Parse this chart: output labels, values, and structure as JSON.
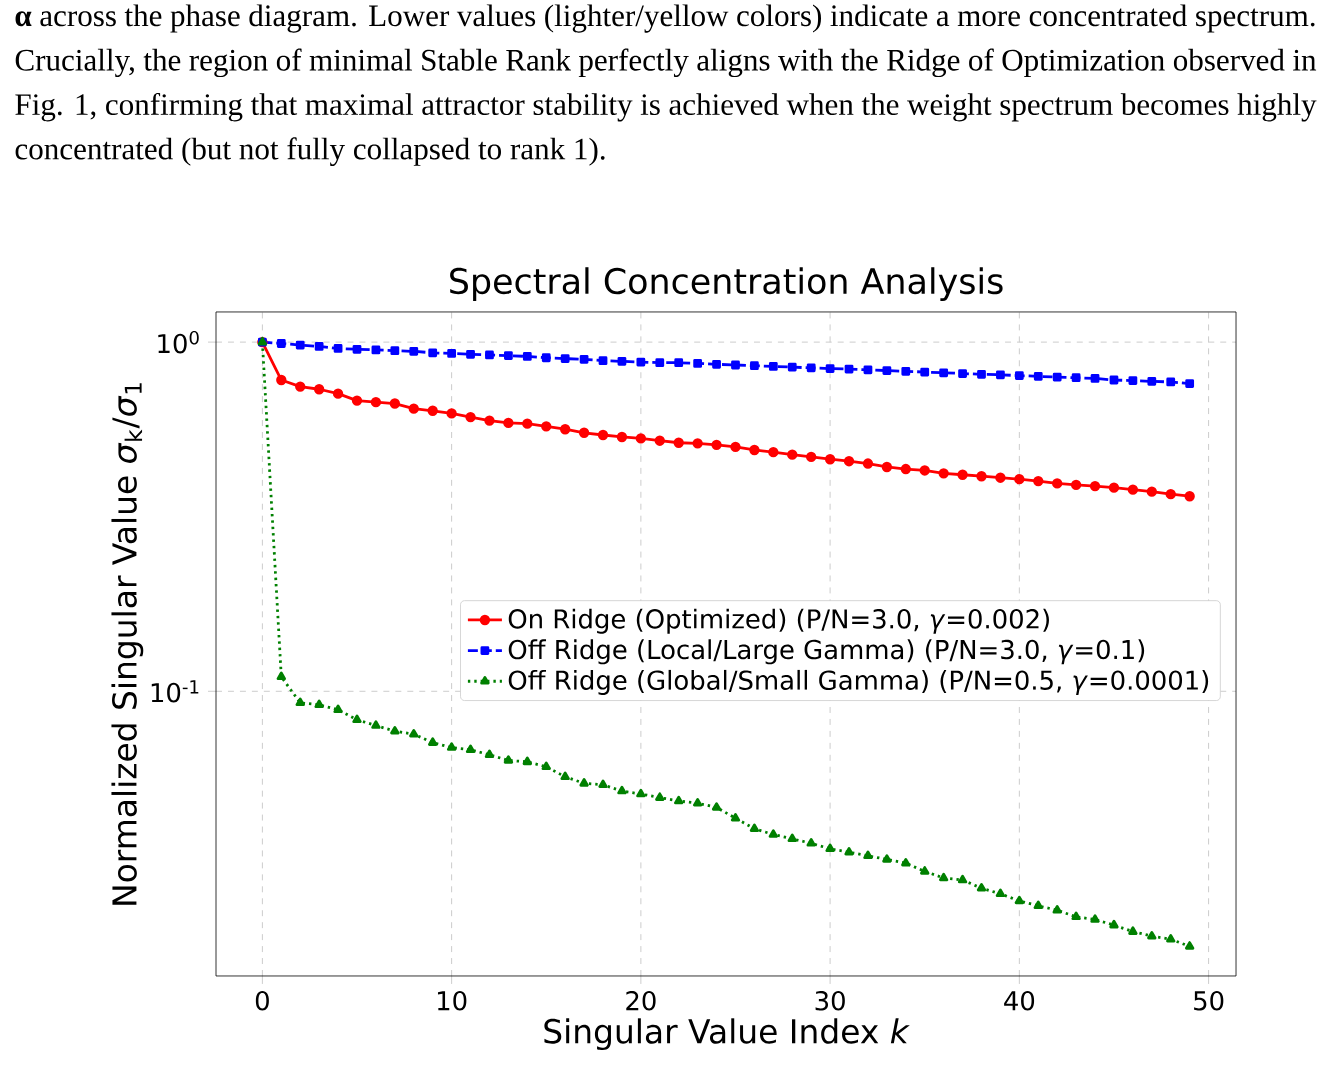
{
  "chart_data": {
    "type": "line",
    "annotations": [
      "**α** across the phase diagram.  Lower values (lighter/yellow colors) indicate a more concentrated spectrum. Crucially, the region of minimal Stable Rank perfectly aligns with the Ridge of Optimization observed in Fig. 1, confirming that maximal attractor stability is achieved when the weight spectrum becomes highly concentrated (but not fully collapsed to rank 1)."
    ],
    "title": "Spectral Concentration Analysis",
    "xlabel": "Singular Value Index *k*",
    "ylabel": "Normalized Singular Value *σ*$_{k}$/*σ*$_{1}$",
    "x": [
      0,
      1,
      2,
      3,
      4,
      5,
      6,
      7,
      8,
      9,
      10,
      11,
      12,
      13,
      14,
      15,
      16,
      17,
      18,
      19,
      20,
      21,
      22,
      23,
      24,
      25,
      26,
      27,
      28,
      29,
      30,
      31,
      32,
      33,
      34,
      35,
      36,
      37,
      38,
      39,
      40,
      41,
      42,
      43,
      44,
      45,
      46,
      47,
      48,
      49
    ],
    "series": [
      {
        "name": "On Ridge (Optimized) (P/N=3.0, *γ*=0.002)",
        "color": "#ff0000",
        "marker": "circle",
        "line_style": "solid",
        "values": [
          1.0,
          0.779,
          0.746,
          0.733,
          0.712,
          0.68,
          0.673,
          0.667,
          0.645,
          0.636,
          0.625,
          0.61,
          0.596,
          0.587,
          0.584,
          0.574,
          0.563,
          0.55,
          0.542,
          0.535,
          0.53,
          0.522,
          0.515,
          0.513,
          0.508,
          0.501,
          0.491,
          0.484,
          0.476,
          0.469,
          0.462,
          0.456,
          0.449,
          0.439,
          0.433,
          0.429,
          0.421,
          0.417,
          0.413,
          0.409,
          0.405,
          0.4,
          0.394,
          0.39,
          0.387,
          0.383,
          0.378,
          0.373,
          0.367,
          0.362
        ]
      },
      {
        "name": "Off Ridge (Local/Large Gamma) (P/N=3.0, *γ*=0.1)",
        "color": "#0000ff",
        "marker": "square",
        "line_style": "dashed",
        "values": [
          1.0,
          0.991,
          0.981,
          0.972,
          0.959,
          0.954,
          0.95,
          0.945,
          0.941,
          0.932,
          0.928,
          0.923,
          0.919,
          0.915,
          0.91,
          0.902,
          0.897,
          0.893,
          0.885,
          0.881,
          0.877,
          0.873,
          0.873,
          0.869,
          0.864,
          0.86,
          0.856,
          0.852,
          0.848,
          0.844,
          0.84,
          0.837,
          0.833,
          0.829,
          0.825,
          0.821,
          0.817,
          0.813,
          0.809,
          0.806,
          0.802,
          0.798,
          0.794,
          0.791,
          0.787,
          0.779,
          0.776,
          0.772,
          0.769,
          0.761
        ]
      },
      {
        "name": "Off Ridge (Global/Small Gamma) (P/N=0.5, *γ*=0.0001)",
        "color": "#008000",
        "marker": "triangle",
        "line_style": "dotted",
        "values": [
          1.0,
          0.11,
          0.0927,
          0.0915,
          0.0885,
          0.0829,
          0.0798,
          0.0769,
          0.0754,
          0.0713,
          0.069,
          0.068,
          0.0658,
          0.0634,
          0.0628,
          0.0608,
          0.0569,
          0.0545,
          0.054,
          0.0518,
          0.0508,
          0.0496,
          0.0485,
          0.0478,
          0.0465,
          0.0433,
          0.0404,
          0.0389,
          0.0378,
          0.0367,
          0.0354,
          0.0346,
          0.0338,
          0.033,
          0.0322,
          0.0305,
          0.0292,
          0.0288,
          0.0273,
          0.0263,
          0.0251,
          0.0243,
          0.0236,
          0.0226,
          0.0222,
          0.0214,
          0.0205,
          0.0199,
          0.0195,
          0.0186
        ]
      }
    ],
    "log": "y",
    "xlim": [
      -2.45,
      51.45
    ],
    "ylim": [
      0.0153,
      1.22
    ],
    "xticks": [
      0,
      10,
      20,
      30,
      40,
      50
    ],
    "yticks": [
      {
        "value": 1,
        "label": "10$^{0}$"
      },
      {
        "value": 0.1,
        "label": "10$^{-1}$"
      }
    ],
    "grid": true,
    "legend": "center right"
  }
}
